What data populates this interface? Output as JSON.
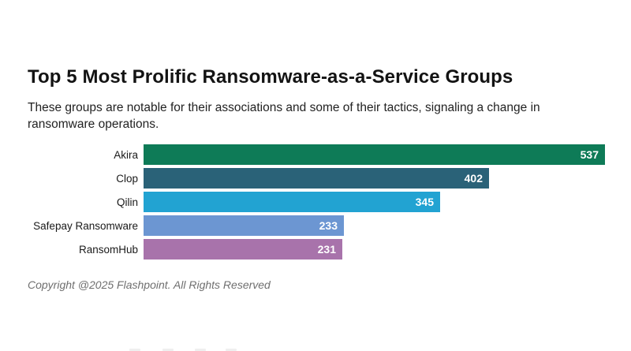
{
  "page": {
    "title": "Top 5 Most Prolific Ransomware-as-a-Service Groups",
    "subtitle": "These groups are notable for their associations and some of their tactics, signaling a change in ransomware operations.",
    "footer": "Copyright @2025 Flashpoint. All Rights Reserved"
  },
  "chart_data": {
    "type": "bar",
    "orientation": "horizontal",
    "title": "Top 5 Most Prolific Ransomware-as-a-Service Groups",
    "subtitle": "These groups are notable for their associations and some of their tactics, signaling a change in ransomware operations.",
    "categories": [
      "Akira",
      "Clop",
      "Qilin",
      "Safepay Ransomware",
      "RansomHub"
    ],
    "values": [
      537,
      402,
      345,
      233,
      231
    ],
    "bar_colors": [
      "#0e7b57",
      "#2a6278",
      "#22a3d2",
      "#6c96d2",
      "#a873ab"
    ],
    "value_label_color": "#ffffff",
    "value_labels_inside_bar_end": true,
    "xlim": [
      0,
      537
    ],
    "grid": false,
    "legend": false,
    "xlabel": "",
    "ylabel": ""
  },
  "layout_colors": {
    "background": "#ffffff",
    "title_text": "#131313",
    "subtitle_text": "#222222",
    "label_text": "#1a1a1a",
    "footer_text": "#6f6f6f"
  }
}
